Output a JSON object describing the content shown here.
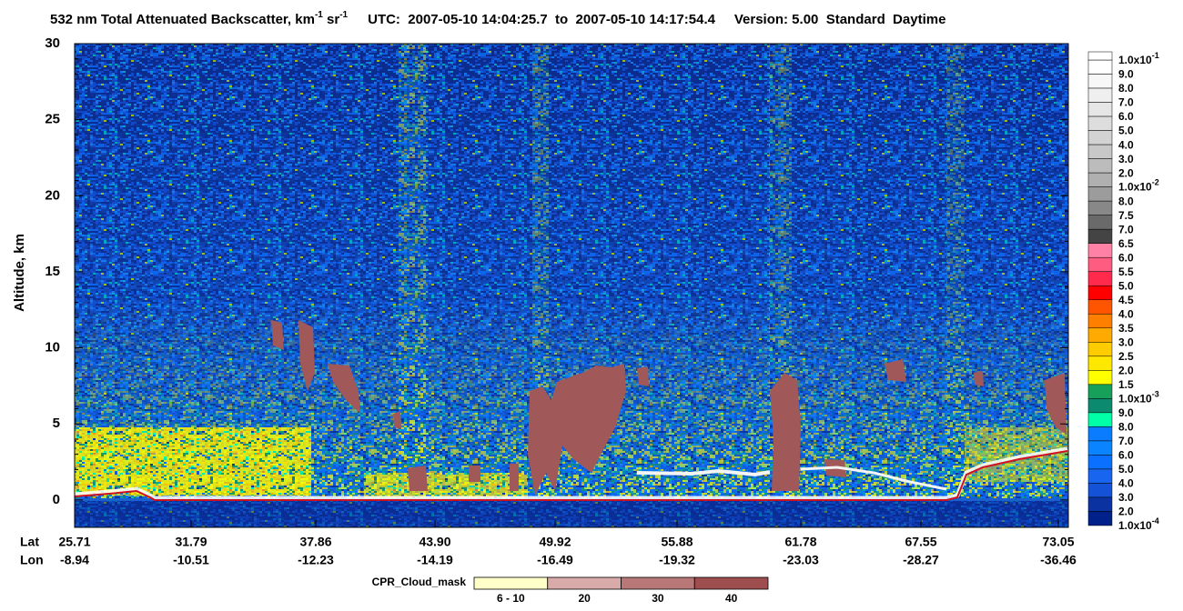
{
  "chart_data": {
    "type": "curtain",
    "title": {
      "main": "532 nm Total Attenuated Backscatter, km",
      "exp1": "-1",
      "mid": " sr",
      "exp2": "-1",
      "rest": "UTC:  2007-05-10 14:04:25.7  to  2007-05-10 14:17:54.4     Version: 5.00  Standard  Daytime"
    },
    "y_label": "Altitude, km",
    "ylim": [
      -1.8,
      30
    ],
    "yticks": [
      0,
      5,
      10,
      15,
      20,
      25,
      30
    ],
    "x_rows": [
      {
        "name": "Lat",
        "values": [
          "25.71",
          "31.79",
          "37.86",
          "43.90",
          "49.92",
          "55.88",
          "61.78",
          "67.55",
          "73.05"
        ]
      },
      {
        "name": "Lon",
        "values": [
          "-8.94",
          "-10.51",
          "-12.23",
          "-14.19",
          "-16.49",
          "-19.32",
          "-23.03",
          "-28.27",
          "-36.46"
        ]
      }
    ],
    "colorbar": {
      "labels": [
        {
          "base": "1.0x10",
          "exp": "-1"
        },
        "9.0",
        "8.0",
        "7.0",
        "6.0",
        "5.0",
        "4.0",
        "3.0",
        "2.0",
        {
          "base": "1.0x10",
          "exp": "-2"
        },
        "8.0",
        "7.5",
        "7.0",
        "6.5",
        "6.0",
        "5.5",
        "5.0",
        "4.5",
        "4.0",
        "3.5",
        "3.0",
        "2.5",
        "2.0",
        "1.5",
        {
          "base": "1.0x10",
          "exp": "-3"
        },
        "9.0",
        "8.0",
        "7.0",
        "6.0",
        "5.0",
        "4.0",
        "3.0",
        "2.0",
        {
          "base": "1.0x10",
          "exp": "-4"
        }
      ],
      "colors": [
        "#ffffff",
        "#f7f7f7",
        "#efefef",
        "#e6e6e6",
        "#dddddd",
        "#d3d3d3",
        "#c8c8c8",
        "#bcbcbc",
        "#b0b0b0",
        "#9c9c9c",
        "#888888",
        "#6a6a6a",
        "#444444",
        "#ff82a6",
        "#ff5c82",
        "#ff2a4c",
        "#ff0000",
        "#ff5500",
        "#ff7f00",
        "#ffaa00",
        "#ffcc00",
        "#ffe800",
        "#ffff00",
        "#16a05a",
        "#0c8a70",
        "#00ffa6",
        "#0a7cff",
        "#0a84ff",
        "#0a70ff",
        "#1866f0",
        "#1452d8",
        "#0a32a0",
        "#00208a"
      ]
    },
    "cloud_mask": {
      "title": "CPR_Cloud_mask",
      "labels": [
        "6 - 10",
        "20",
        "30",
        "40"
      ],
      "colors": [
        "#ffffc8",
        "#d8aaaa",
        "#b87878",
        "#9e4e4e"
      ]
    }
  }
}
